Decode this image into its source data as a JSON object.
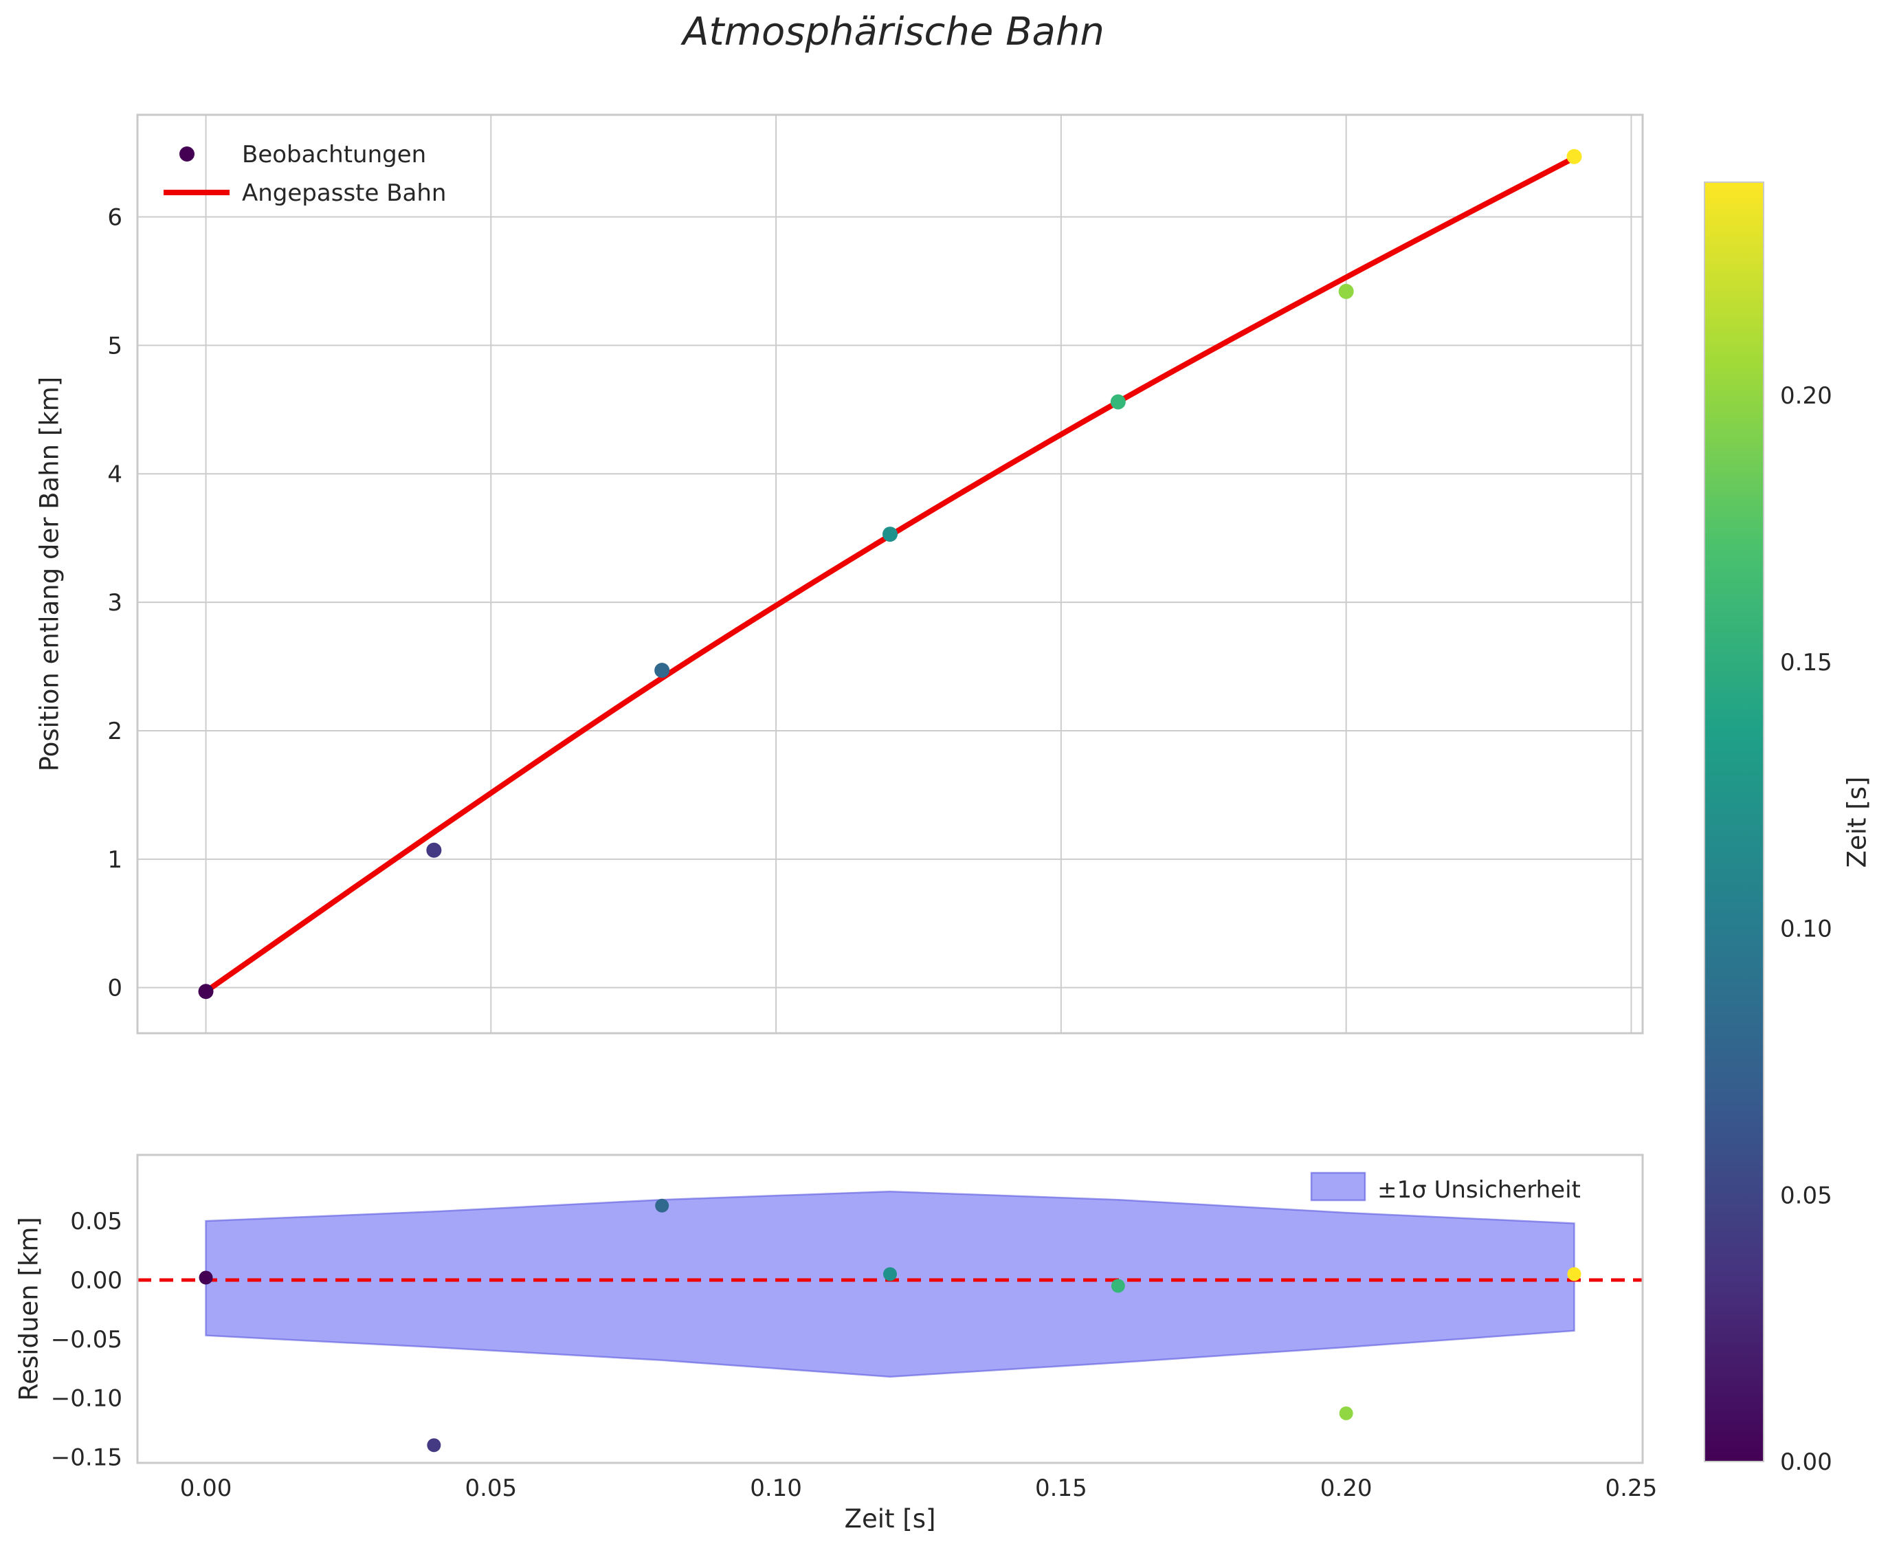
{
  "title": "Atmosphärische Bahn",
  "figure": {
    "bg": "#ffffff",
    "text_color": "#262626",
    "grid_color": "#cccccc",
    "spine_color": "#c9c9c9"
  },
  "chart_data": [
    {
      "id": "trajectory",
      "type": "scatter+line",
      "ylabel": "Position entlang der Bahn [km]",
      "legend": [
        "Beobachtungen",
        "Angepasste Bahn"
      ],
      "x": [
        0.0,
        0.04,
        0.08,
        0.12,
        0.16,
        0.2,
        0.24
      ],
      "observations": [
        -0.03,
        1.07,
        2.47,
        3.53,
        4.56,
        5.42,
        6.47
      ],
      "fitted": [
        -0.03,
        1.21,
        2.41,
        3.52,
        4.56,
        5.53,
        6.46
      ],
      "point_colors": [
        "#440154",
        "#443983",
        "#31688e",
        "#21918c",
        "#35b779",
        "#90d743",
        "#fde725"
      ],
      "line_color": "#ee0000",
      "xlim": [
        -0.012,
        0.252
      ],
      "ylim": [
        -0.355,
        6.795
      ],
      "yticks": [
        "0",
        "1",
        "2",
        "3",
        "4",
        "5",
        "6"
      ],
      "ytick_vals": [
        0,
        1,
        2,
        3,
        4,
        5,
        6
      ],
      "xtick_vals": [
        0.0,
        0.05,
        0.1,
        0.15,
        0.2,
        0.25
      ],
      "grid": true
    },
    {
      "id": "residuals",
      "type": "scatter+band",
      "ylabel": "Residuen [km]",
      "xlabel": "Zeit [s]",
      "legend": [
        "±1σ Unsicherheit"
      ],
      "x": [
        0.0,
        0.04,
        0.08,
        0.12,
        0.16,
        0.2,
        0.24
      ],
      "residuals": [
        0.002,
        -0.14,
        0.063,
        0.005,
        -0.005,
        -0.113,
        0.005
      ],
      "band_upper": [
        0.05,
        0.058,
        0.068,
        0.075,
        0.068,
        0.057,
        0.048
      ],
      "band_lower": [
        -0.047,
        -0.057,
        -0.068,
        -0.082,
        -0.07,
        -0.057,
        -0.043
      ],
      "band_color": "#2a2aee",
      "band_edge": "#5a5ae0",
      "band_opacity": 0.42,
      "zero_line_color": "#ee0000",
      "xlim": [
        -0.012,
        0.252
      ],
      "ylim": [
        -0.155,
        0.106
      ],
      "yticks": [
        "−0.15",
        "−0.10",
        "−0.05",
        "0.00",
        "0.05"
      ],
      "ytick_vals": [
        -0.15,
        -0.1,
        -0.05,
        0.0,
        0.05
      ],
      "xticks": [
        "0.00",
        "0.05",
        "0.10",
        "0.15",
        "0.20",
        "0.25"
      ],
      "xtick_vals": [
        0.0,
        0.05,
        0.1,
        0.15,
        0.2,
        0.25
      ],
      "grid": false
    },
    {
      "id": "colorbar",
      "type": "colorbar",
      "label": "Zeit [s]",
      "min": 0.0,
      "max": 0.24,
      "ticks": [
        "0.00",
        "0.05",
        "0.10",
        "0.15",
        "0.20"
      ],
      "tick_vals": [
        0.0,
        0.05,
        0.1,
        0.15,
        0.2
      ],
      "gradient": [
        "#440154",
        "#46327e",
        "#365c8d",
        "#277f8e",
        "#1fa187",
        "#4ac16d",
        "#a0da39",
        "#fde725"
      ]
    }
  ]
}
